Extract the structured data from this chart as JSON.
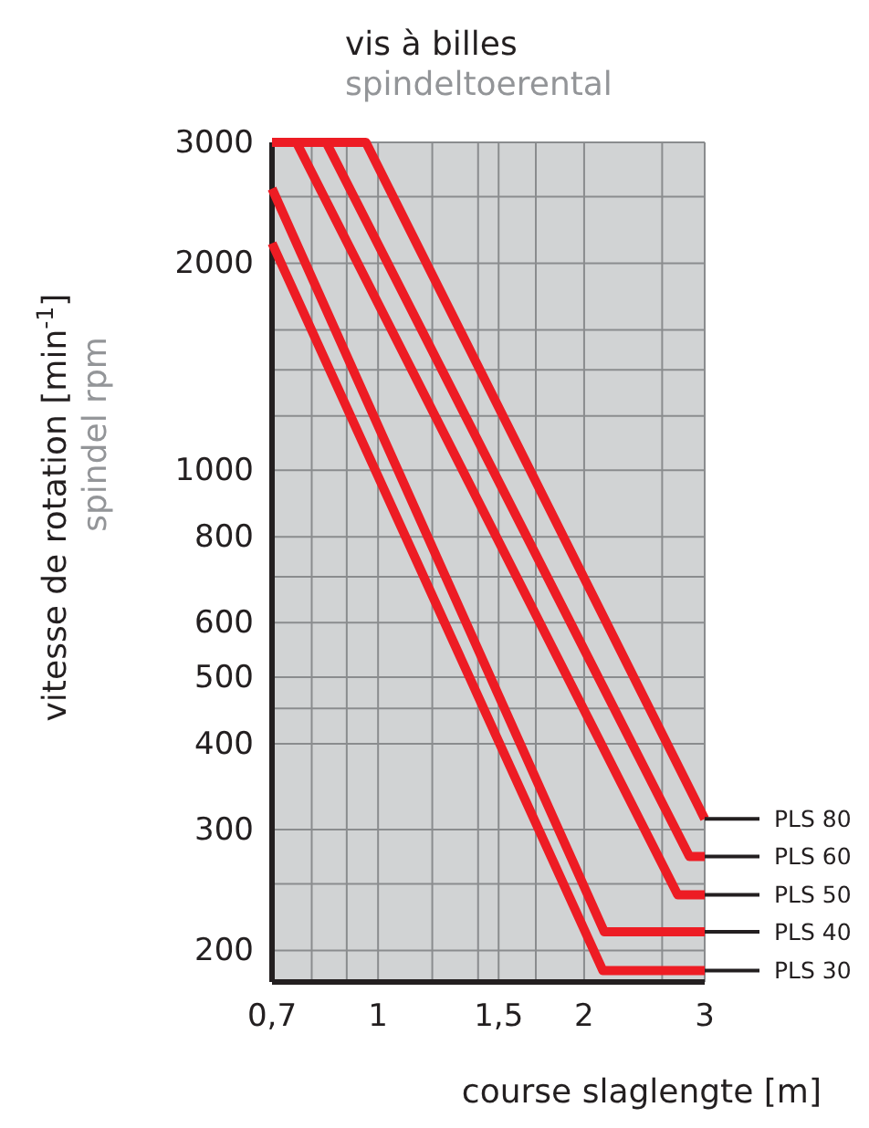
{
  "chart_data": {
    "type": "line",
    "title": "vis à billes",
    "subtitle": "spindeltoerental",
    "xlabel": "course slaglengte  [m]",
    "ylabel": "vitesse de rotation  [min$^{-1}$]",
    "annotations": [
      "spindel rpm"
    ],
    "log": "xy",
    "grid": true,
    "legend": "right",
    "line_style": "solid",
    "marker": "none",
    "xlim": [
      0.7,
      3
    ],
    "ylim": [
      180,
      3000
    ],
    "xticks": [
      {
        "value": 0.7,
        "label": "0,7"
      },
      {
        "value": 0.8,
        "label": null
      },
      {
        "value": 0.9,
        "label": null
      },
      1,
      {
        "value": 1.2,
        "label": null
      },
      {
        "value": 1.4,
        "label": null
      },
      {
        "value": 1.5,
        "label": "1,5"
      },
      {
        "value": 1.7,
        "label": null
      },
      2,
      {
        "value": 2.6,
        "label": null
      },
      3
    ],
    "yticks": [
      {
        "value": 2500,
        "label": null
      },
      2000,
      {
        "value": 1600,
        "label": null
      },
      {
        "value": 1400,
        "label": null
      },
      {
        "value": 1200,
        "label": null
      },
      1000,
      800,
      {
        "value": 700,
        "label": null
      },
      600,
      500,
      {
        "value": 450,
        "label": null
      },
      400,
      300,
      {
        "value": 250,
        "label": null
      },
      200,
      3000
    ],
    "series": [
      {
        "name": "PLS 80",
        "color": "#ed1c24",
        "x": [
          0.7,
          0.96,
          3
        ],
        "values": [
          3000,
          3000,
          311
        ]
      },
      {
        "name": "PLS 60",
        "color": "#ed1c24",
        "x": [
          0.7,
          0.84,
          2.85,
          3
        ],
        "values": [
          3000,
          3000,
          274,
          274
        ]
      },
      {
        "name": "PLS 50",
        "color": "#ed1c24",
        "x": [
          0.7,
          0.76,
          2.74,
          3
        ],
        "values": [
          3000,
          3000,
          241,
          241
        ]
      },
      {
        "name": "PLS 40",
        "color": "#ed1c24",
        "x": [
          0.7,
          2.14,
          3
        ],
        "values": [
          2570,
          213,
          213
        ]
      },
      {
        "name": "PLS 30",
        "color": "#ed1c24",
        "x": [
          0.7,
          2.13,
          3
        ],
        "values": [
          2140,
          187,
          187
        ]
      }
    ]
  }
}
